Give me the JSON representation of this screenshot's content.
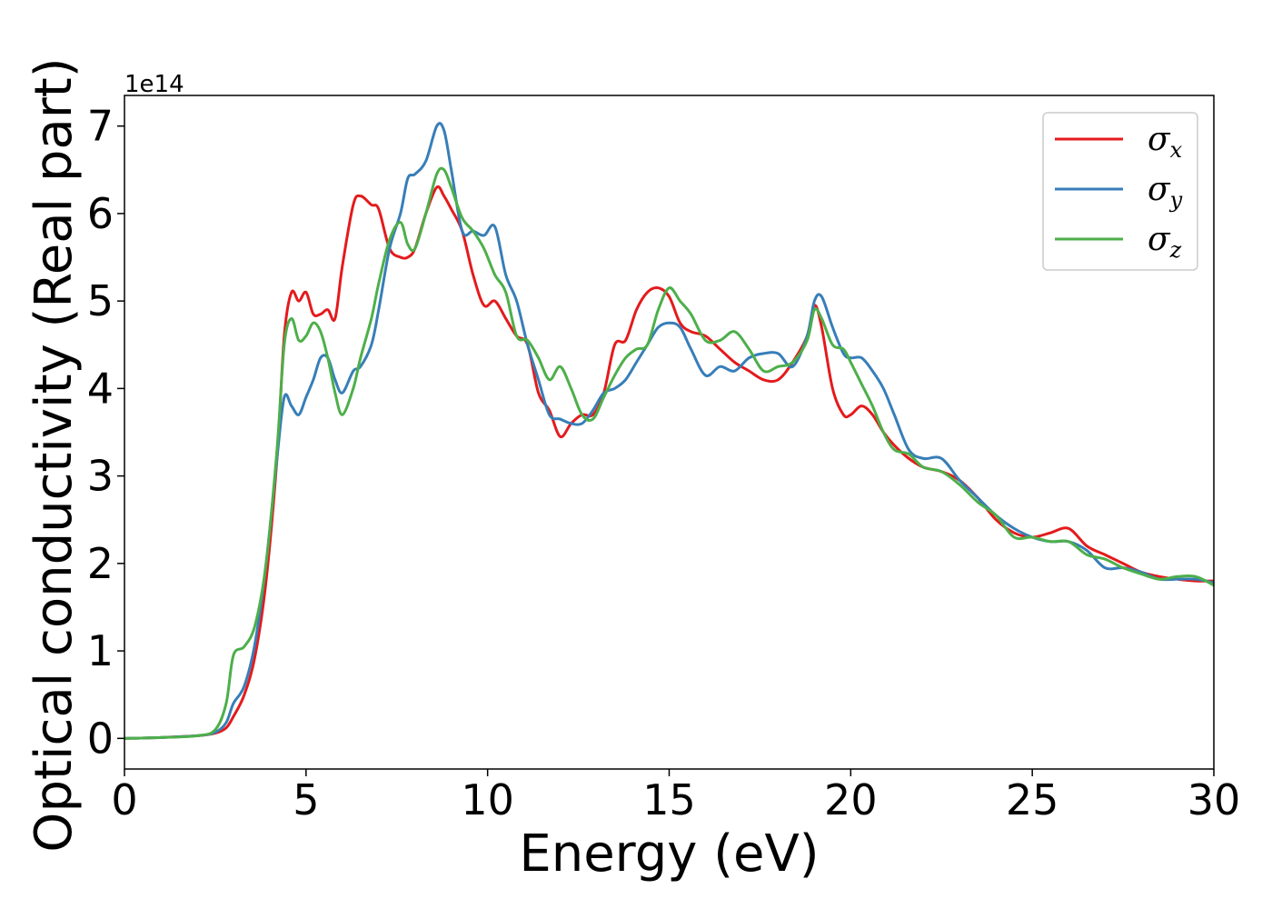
{
  "chart_data": {
    "type": "line",
    "xlabel": "Energy (eV)",
    "ylabel": "Optical conductivity (Real part)",
    "y_offset_label": "1e14",
    "xlim": [
      0,
      30
    ],
    "ylim": [
      -0.35,
      7.35
    ],
    "x_ticks": [
      0,
      5,
      10,
      15,
      20,
      25,
      30
    ],
    "y_ticks": [
      0,
      1,
      2,
      3,
      4,
      5,
      6,
      7
    ],
    "x_tick_labels": [
      "0",
      "5",
      "10",
      "15",
      "20",
      "25",
      "30"
    ],
    "y_tick_labels": [
      "0",
      "1",
      "2",
      "3",
      "4",
      "5",
      "6",
      "7"
    ],
    "grid": false,
    "legend_position": "top-right",
    "series": [
      {
        "name": "σx",
        "symbol": "σ",
        "subscript": "x",
        "color": "#e41a1c",
        "x": [
          0,
          1,
          2,
          2.5,
          2.8,
          3.0,
          3.3,
          3.6,
          3.9,
          4.2,
          4.4,
          4.6,
          4.8,
          5.0,
          5.2,
          5.4,
          5.6,
          5.8,
          6.0,
          6.3,
          6.5,
          6.8,
          7.0,
          7.3,
          7.6,
          7.8,
          8.0,
          8.3,
          8.6,
          8.8,
          9.0,
          9.3,
          9.6,
          9.9,
          10.2,
          10.5,
          10.8,
          11.1,
          11.4,
          11.7,
          12.0,
          12.3,
          12.6,
          12.9,
          13.2,
          13.5,
          13.8,
          14.1,
          14.4,
          14.7,
          15.0,
          15.3,
          15.6,
          16.0,
          16.4,
          16.8,
          17.2,
          17.6,
          18.0,
          18.4,
          18.8,
          19.0,
          19.2,
          19.5,
          19.8,
          20.0,
          20.3,
          20.6,
          20.9,
          21.2,
          21.6,
          22.0,
          22.5,
          23.0,
          23.5,
          24.0,
          24.5,
          25.0,
          25.5,
          26.0,
          26.5,
          27.0,
          27.5,
          28.0,
          28.5,
          29.0,
          29.5,
          30.0
        ],
        "values": [
          0,
          0.01,
          0.03,
          0.06,
          0.12,
          0.25,
          0.5,
          0.95,
          1.8,
          3.2,
          4.6,
          5.1,
          5.0,
          5.1,
          4.85,
          4.85,
          4.9,
          4.8,
          5.4,
          6.1,
          6.2,
          6.1,
          6.05,
          5.6,
          5.5,
          5.5,
          5.6,
          6.0,
          6.3,
          6.2,
          6.05,
          5.8,
          5.3,
          4.95,
          5.0,
          4.8,
          4.6,
          4.5,
          3.95,
          3.75,
          3.45,
          3.6,
          3.7,
          3.7,
          3.95,
          4.5,
          4.55,
          4.9,
          5.1,
          5.15,
          5.05,
          4.75,
          4.65,
          4.6,
          4.45,
          4.3,
          4.2,
          4.1,
          4.1,
          4.3,
          4.6,
          4.95,
          4.7,
          4.0,
          3.7,
          3.7,
          3.8,
          3.7,
          3.5,
          3.35,
          3.2,
          3.1,
          3.05,
          2.95,
          2.75,
          2.5,
          2.35,
          2.3,
          2.35,
          2.4,
          2.2,
          2.1,
          2.0,
          1.9,
          1.85,
          1.82,
          1.8,
          1.8
        ]
      },
      {
        "name": "σy",
        "symbol": "σ",
        "subscript": "y",
        "color": "#377eb8",
        "x": [
          0,
          1,
          2,
          2.5,
          2.8,
          3.0,
          3.3,
          3.6,
          3.9,
          4.2,
          4.4,
          4.6,
          4.8,
          5.0,
          5.2,
          5.4,
          5.6,
          5.8,
          6.0,
          6.3,
          6.5,
          6.8,
          7.0,
          7.3,
          7.6,
          7.8,
          8.0,
          8.3,
          8.6,
          8.8,
          9.0,
          9.3,
          9.6,
          9.9,
          10.2,
          10.5,
          10.8,
          11.1,
          11.4,
          11.7,
          12.0,
          12.3,
          12.6,
          12.9,
          13.2,
          13.5,
          13.8,
          14.1,
          14.4,
          14.7,
          15.0,
          15.3,
          15.6,
          16.0,
          16.4,
          16.8,
          17.2,
          17.6,
          18.0,
          18.4,
          18.8,
          19.0,
          19.2,
          19.5,
          19.8,
          20.0,
          20.3,
          20.6,
          20.9,
          21.2,
          21.6,
          22.0,
          22.5,
          23.0,
          23.5,
          24.0,
          24.5,
          25.0,
          25.5,
          26.0,
          26.5,
          27.0,
          27.5,
          28.0,
          28.5,
          29.0,
          29.5,
          30.0
        ],
        "values": [
          0,
          0.01,
          0.03,
          0.07,
          0.18,
          0.4,
          0.6,
          1.1,
          2.0,
          3.2,
          3.9,
          3.8,
          3.7,
          3.9,
          4.1,
          4.35,
          4.35,
          4.1,
          3.95,
          4.2,
          4.25,
          4.5,
          4.9,
          5.6,
          6.0,
          6.4,
          6.45,
          6.6,
          7.0,
          6.95,
          6.5,
          5.8,
          5.8,
          5.75,
          5.85,
          5.3,
          5.0,
          4.5,
          4.1,
          3.7,
          3.65,
          3.6,
          3.6,
          3.75,
          3.95,
          4.0,
          4.1,
          4.3,
          4.5,
          4.7,
          4.75,
          4.7,
          4.45,
          4.15,
          4.25,
          4.2,
          4.35,
          4.4,
          4.4,
          4.25,
          4.6,
          5.0,
          5.05,
          4.7,
          4.4,
          4.35,
          4.35,
          4.2,
          4.0,
          3.7,
          3.3,
          3.2,
          3.2,
          2.95,
          2.75,
          2.55,
          2.4,
          2.3,
          2.25,
          2.25,
          2.15,
          1.95,
          1.95,
          1.9,
          1.82,
          1.82,
          1.82,
          1.78
        ]
      },
      {
        "name": "σz",
        "symbol": "σ",
        "subscript": "z",
        "color": "#4daf4a",
        "x": [
          0,
          1,
          2,
          2.5,
          2.8,
          3.0,
          3.3,
          3.6,
          3.9,
          4.2,
          4.4,
          4.6,
          4.8,
          5.0,
          5.2,
          5.4,
          5.6,
          5.8,
          6.0,
          6.3,
          6.5,
          6.8,
          7.0,
          7.3,
          7.6,
          7.8,
          8.0,
          8.3,
          8.6,
          8.8,
          9.0,
          9.3,
          9.6,
          9.9,
          10.2,
          10.5,
          10.8,
          11.1,
          11.4,
          11.7,
          12.0,
          12.3,
          12.6,
          12.9,
          13.2,
          13.5,
          13.8,
          14.1,
          14.4,
          14.7,
          15.0,
          15.3,
          15.6,
          16.0,
          16.4,
          16.8,
          17.2,
          17.6,
          18.0,
          18.4,
          18.8,
          19.0,
          19.2,
          19.5,
          19.8,
          20.0,
          20.3,
          20.6,
          20.9,
          21.2,
          21.6,
          22.0,
          22.5,
          23.0,
          23.5,
          24.0,
          24.5,
          25.0,
          25.5,
          26.0,
          26.5,
          27.0,
          27.5,
          28.0,
          28.5,
          29.0,
          29.5,
          30.0
        ],
        "values": [
          0,
          0.01,
          0.03,
          0.1,
          0.4,
          0.95,
          1.05,
          1.3,
          2.0,
          3.3,
          4.5,
          4.8,
          4.55,
          4.6,
          4.75,
          4.65,
          4.35,
          3.95,
          3.7,
          4.0,
          4.35,
          4.8,
          5.2,
          5.7,
          5.9,
          5.65,
          5.6,
          6.0,
          6.45,
          6.5,
          6.3,
          5.95,
          5.8,
          5.6,
          5.3,
          5.1,
          4.6,
          4.55,
          4.35,
          4.1,
          4.25,
          4.0,
          3.7,
          3.65,
          3.9,
          4.15,
          4.35,
          4.45,
          4.5,
          4.9,
          5.15,
          5.0,
          4.85,
          4.55,
          4.55,
          4.65,
          4.45,
          4.2,
          4.25,
          4.3,
          4.55,
          4.9,
          4.8,
          4.5,
          4.45,
          4.3,
          4.05,
          3.8,
          3.5,
          3.3,
          3.25,
          3.1,
          3.05,
          2.9,
          2.7,
          2.55,
          2.3,
          2.3,
          2.25,
          2.25,
          2.1,
          2.05,
          1.95,
          1.88,
          1.82,
          1.85,
          1.85,
          1.75
        ]
      }
    ]
  }
}
